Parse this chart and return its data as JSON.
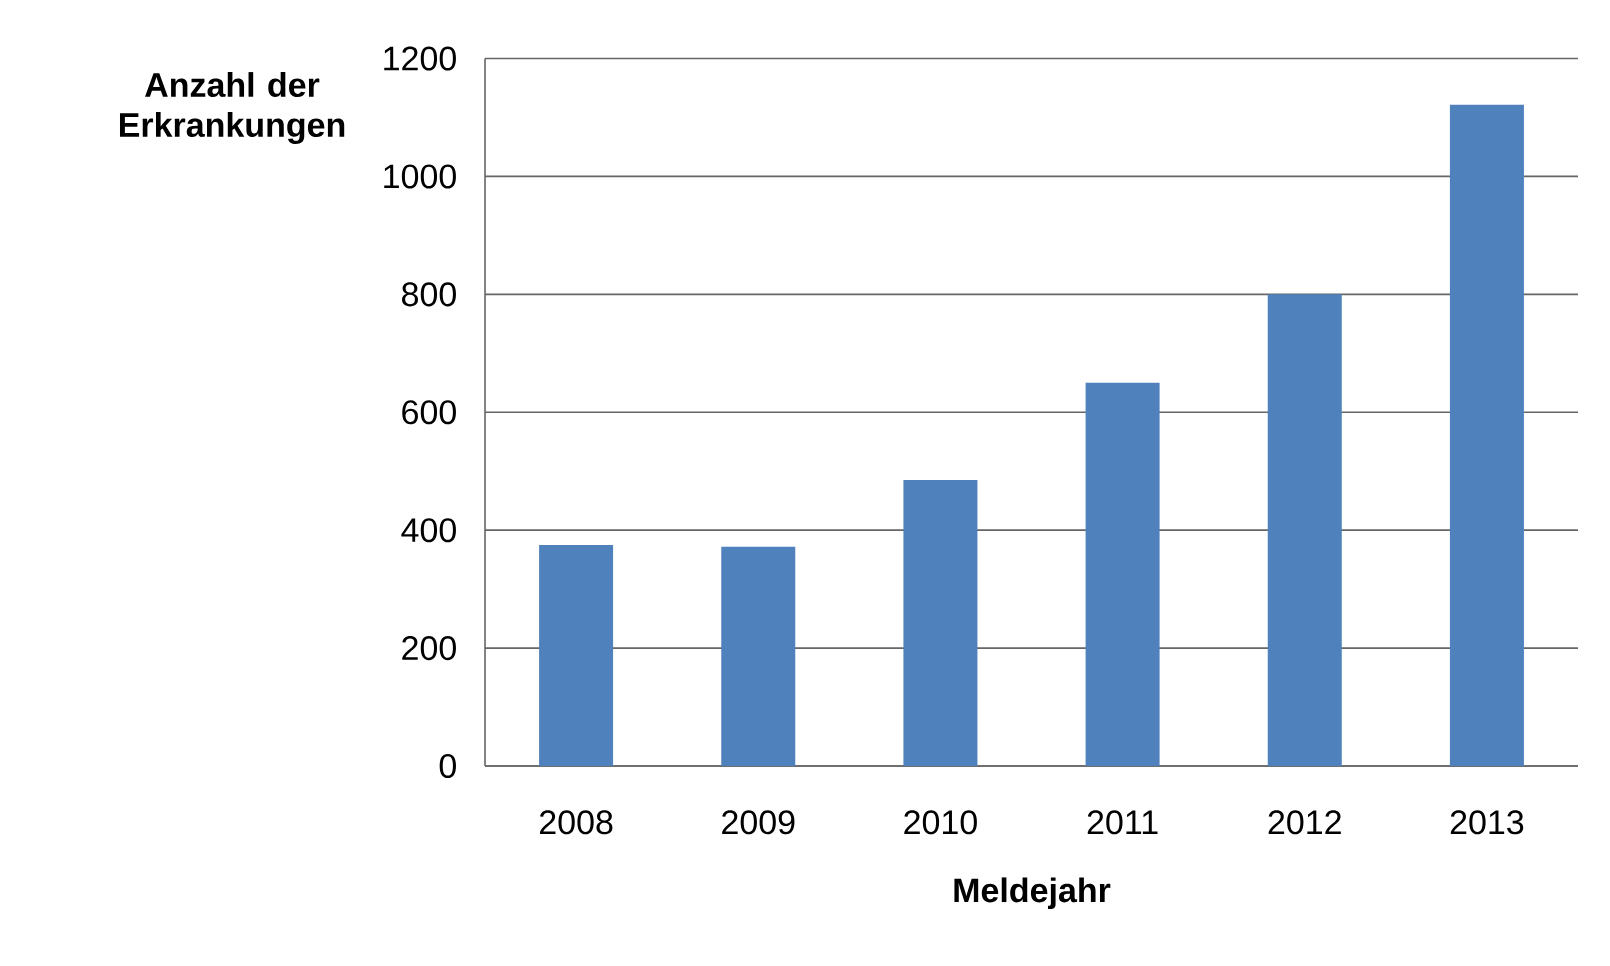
{
  "chart_data": {
    "type": "bar",
    "ylabel": "Anzahl der Erkrankungen",
    "xlabel": "Meldejahr",
    "categories": [
      "2008",
      "2009",
      "2010",
      "2011",
      "2012",
      "2013"
    ],
    "values": [
      375,
      372,
      485,
      650,
      800,
      1122
    ],
    "color": "#4f81bd",
    "ylim": [
      0,
      1200
    ],
    "yticks": [
      0,
      200,
      400,
      600,
      800,
      1000,
      1200
    ],
    "grid": "y"
  }
}
